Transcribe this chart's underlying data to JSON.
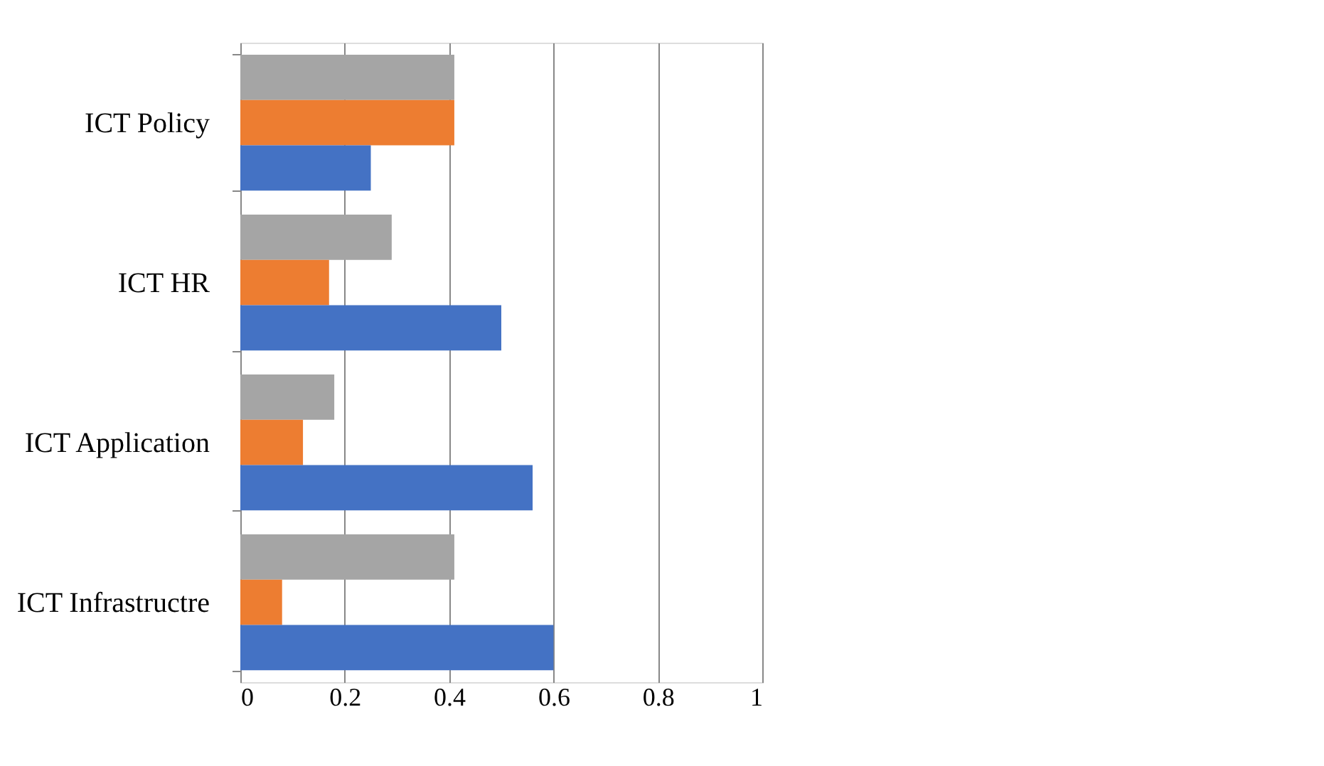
{
  "chart_data": {
    "type": "bar",
    "orientation": "horizontal",
    "categories": [
      "ICT Policy",
      "ICT HR",
      "ICT Application",
      "ICT Infrastructre"
    ],
    "series": [
      {
        "color": "#a5a5a5",
        "values": [
          0.41,
          0.29,
          0.18,
          0.41
        ]
      },
      {
        "color": "#ed7d31",
        "values": [
          0.41,
          0.17,
          0.12,
          0.08
        ]
      },
      {
        "color": "#4472c4",
        "values": [
          0.25,
          0.5,
          0.56,
          0.6
        ]
      }
    ],
    "xlim": [
      0,
      1
    ],
    "xticks": [
      0,
      0.2,
      0.4,
      0.6,
      0.8,
      1
    ],
    "grid": "x",
    "legend": false
  }
}
